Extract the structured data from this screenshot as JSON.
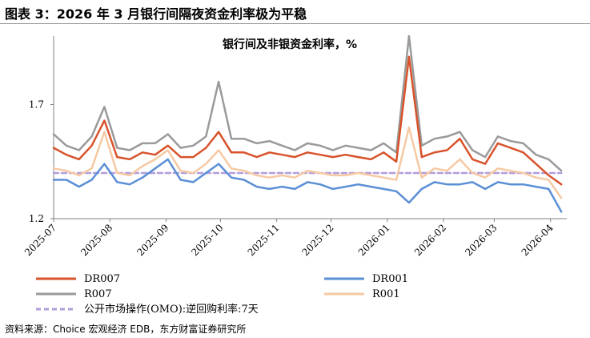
{
  "figure_title": "图表 3：2026 年 3 月银行间隔夜资金利率极为平稳",
  "source_text": "资料来源：Choice 宏观经济 EDB，东方财富证券研究所",
  "chart_data": {
    "type": "line",
    "title": "银行间及非银资金利率，%",
    "xlabel": "",
    "ylabel": "",
    "ylim": [
      1.2,
      2.0
    ],
    "yticks": [
      1.2,
      1.7
    ],
    "x_tick_labels": [
      "2025-07",
      "2025-08",
      "2025-09",
      "2025-10",
      "2025-11",
      "2025-12",
      "2026-01",
      "2026-02",
      "2026-03",
      "2026-04"
    ],
    "grid": false,
    "legend_placement": "bottom",
    "x": [
      "2025-07-01",
      "2025-07-08",
      "2025-07-15",
      "2025-07-22",
      "2025-07-29",
      "2025-08-05",
      "2025-08-12",
      "2025-08-19",
      "2025-08-26",
      "2025-09-02",
      "2025-09-09",
      "2025-09-16",
      "2025-09-23",
      "2025-09-30",
      "2025-10-07",
      "2025-10-14",
      "2025-10-21",
      "2025-10-28",
      "2025-11-04",
      "2025-11-11",
      "2025-11-18",
      "2025-11-25",
      "2025-12-02",
      "2025-12-09",
      "2025-12-16",
      "2025-12-23",
      "2025-12-30",
      "2026-01-06",
      "2026-01-13",
      "2026-01-20",
      "2026-01-27",
      "2026-02-03",
      "2026-02-10",
      "2026-02-17",
      "2026-02-24",
      "2026-03-03",
      "2026-03-10",
      "2026-03-17",
      "2026-03-24",
      "2026-03-31",
      "2026-04-07"
    ],
    "series": [
      {
        "name": "DR007",
        "color": "#d8532c",
        "dash": "",
        "values": [
          1.51,
          1.48,
          1.46,
          1.52,
          1.63,
          1.47,
          1.46,
          1.49,
          1.48,
          1.52,
          1.47,
          1.47,
          1.51,
          1.58,
          1.49,
          1.49,
          1.47,
          1.49,
          1.48,
          1.47,
          1.49,
          1.48,
          1.47,
          1.48,
          1.47,
          1.46,
          1.49,
          1.45,
          1.91,
          1.47,
          1.49,
          1.5,
          1.55,
          1.46,
          1.44,
          1.53,
          1.51,
          1.49,
          1.44,
          1.39,
          1.35
        ]
      },
      {
        "name": "DR001",
        "color": "#5b8fd6",
        "dash": "",
        "values": [
          1.37,
          1.37,
          1.34,
          1.37,
          1.44,
          1.36,
          1.35,
          1.38,
          1.42,
          1.46,
          1.37,
          1.36,
          1.4,
          1.44,
          1.38,
          1.37,
          1.34,
          1.33,
          1.34,
          1.33,
          1.36,
          1.35,
          1.33,
          1.34,
          1.35,
          1.34,
          1.33,
          1.32,
          1.27,
          1.33,
          1.36,
          1.35,
          1.35,
          1.36,
          1.33,
          1.36,
          1.35,
          1.35,
          1.34,
          1.33,
          1.23
        ]
      },
      {
        "name": "R007",
        "color": "#9a9a9a",
        "dash": "",
        "values": [
          1.57,
          1.52,
          1.5,
          1.56,
          1.69,
          1.51,
          1.5,
          1.53,
          1.53,
          1.57,
          1.51,
          1.52,
          1.56,
          1.8,
          1.55,
          1.55,
          1.53,
          1.54,
          1.52,
          1.5,
          1.53,
          1.52,
          1.5,
          1.52,
          1.51,
          1.5,
          1.53,
          1.49,
          2.0,
          1.52,
          1.55,
          1.56,
          1.58,
          1.5,
          1.47,
          1.56,
          1.54,
          1.53,
          1.48,
          1.46,
          1.41
        ]
      },
      {
        "name": "R001",
        "color": "#f6c9a3",
        "dash": "",
        "values": [
          1.42,
          1.41,
          1.39,
          1.42,
          1.58,
          1.4,
          1.39,
          1.43,
          1.46,
          1.5,
          1.41,
          1.4,
          1.44,
          1.5,
          1.42,
          1.41,
          1.39,
          1.38,
          1.39,
          1.38,
          1.41,
          1.4,
          1.39,
          1.39,
          1.4,
          1.39,
          1.38,
          1.37,
          1.6,
          1.38,
          1.42,
          1.41,
          1.46,
          1.4,
          1.38,
          1.42,
          1.41,
          1.4,
          1.38,
          1.37,
          1.29
        ]
      },
      {
        "name": "公开市场操作(OMO):逆回购利率:7天",
        "color": "#b39ddb",
        "dash": "6,4",
        "values": [
          1.4,
          1.4,
          1.4,
          1.4,
          1.4,
          1.4,
          1.4,
          1.4,
          1.4,
          1.4,
          1.4,
          1.4,
          1.4,
          1.4,
          1.4,
          1.4,
          1.4,
          1.4,
          1.4,
          1.4,
          1.4,
          1.4,
          1.4,
          1.4,
          1.4,
          1.4,
          1.4,
          1.4,
          1.4,
          1.4,
          1.4,
          1.4,
          1.4,
          1.4,
          1.4,
          1.4,
          1.4,
          1.4,
          1.4,
          1.4,
          1.4
        ]
      }
    ]
  }
}
